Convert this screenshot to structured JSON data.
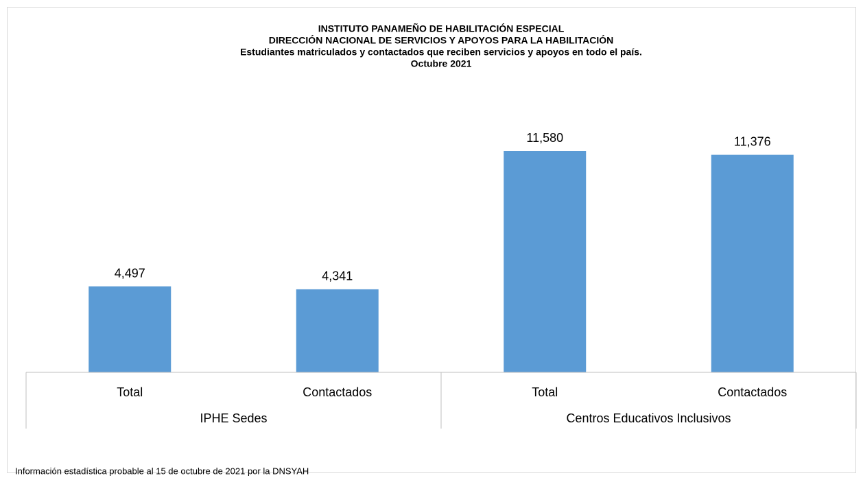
{
  "chart_data": {
    "type": "bar",
    "title": "INSTITUTO PANAMEÑO DE HABILITACIÓN ESPECIAL",
    "subtitle": [
      "DIRECCIÓN NACIONAL DE SERVICIOS Y APOYOS PARA LA HABILITACIÓN",
      "Estudiantes matriculados y contactados que reciben servicios y apoyos en todo el país.",
      "Octubre 2021"
    ],
    "color": "#5b9bd5",
    "groups": [
      {
        "name": "IPHE Sedes",
        "categories": [
          "Total",
          "Contactados"
        ],
        "values": [
          4497,
          4341
        ],
        "value_labels": [
          "4,497",
          "4,341"
        ]
      },
      {
        "name": "Centros Educativos Inclusivos",
        "categories": [
          "Total",
          "Contactados"
        ],
        "values": [
          11580,
          11376
        ],
        "value_labels": [
          "11,580",
          "11,376"
        ]
      }
    ],
    "note": "Información estadística probable al 15 de octubre  de 2021 por la DNSYAH"
  }
}
